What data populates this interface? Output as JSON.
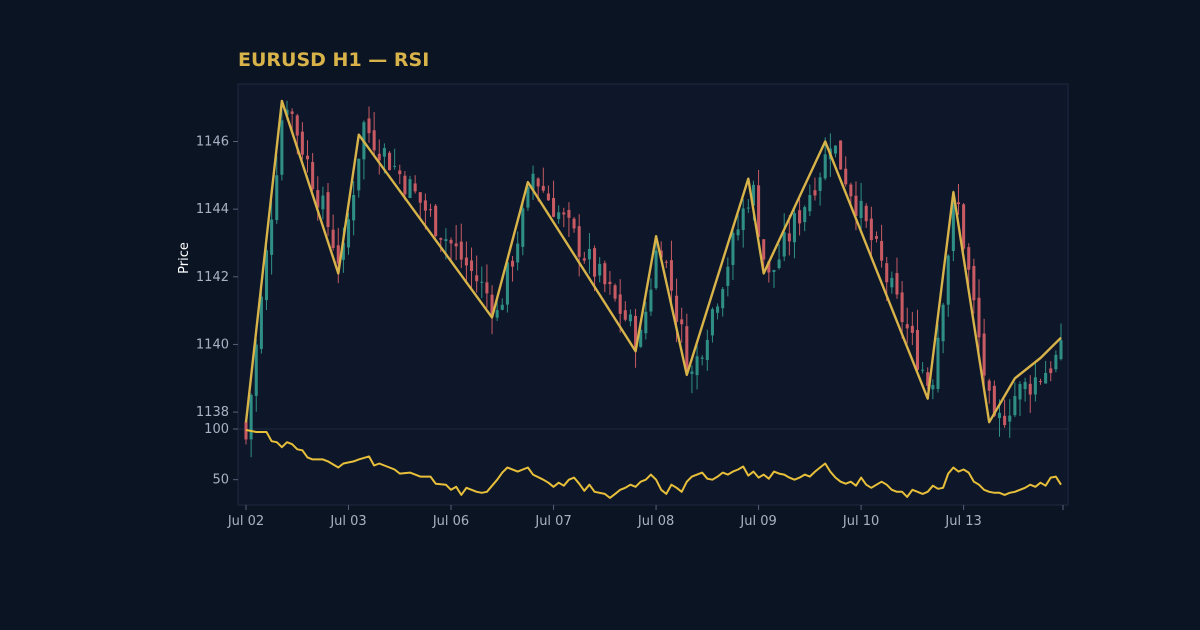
{
  "chart_data": {
    "type": "candlestick",
    "title": "EURUSD H1 — RSI",
    "ylabel": "Price",
    "x_ticks": [
      "Jul 02",
      "Jul 03",
      "Jul 06",
      "Jul 07",
      "Jul 08",
      "Jul 09",
      "Jul 10",
      "Jul 13"
    ],
    "price_ticks": [
      1138,
      1140,
      1142,
      1144,
      1146
    ],
    "price_ylim": [
      1137.5,
      1147.7
    ],
    "rsi_ticks": [
      100,
      50
    ],
    "rsi_ylim": [
      25,
      100
    ],
    "grid": false,
    "colors": {
      "background": "#0b1423",
      "panel": "#0d1729",
      "up": "#2f8f86",
      "down": "#c75a63",
      "zigzag": "#d8b34a",
      "rsi": "#e7bf3a",
      "title": "#d8b34a",
      "tick_text": "#a9b2c4"
    },
    "zigzag": [
      {
        "x": 0,
        "y": 1137.7
      },
      {
        "x": 7,
        "y": 1147.2
      },
      {
        "x": 18,
        "y": 1142.1
      },
      {
        "x": 22,
        "y": 1146.2
      },
      {
        "x": 48,
        "y": 1140.8
      },
      {
        "x": 55,
        "y": 1144.8
      },
      {
        "x": 76,
        "y": 1139.8
      },
      {
        "x": 80,
        "y": 1143.2
      },
      {
        "x": 86,
        "y": 1139.1
      },
      {
        "x": 98,
        "y": 1144.9
      },
      {
        "x": 101,
        "y": 1142.1
      },
      {
        "x": 113,
        "y": 1146.0
      },
      {
        "x": 133,
        "y": 1138.4
      },
      {
        "x": 138,
        "y": 1144.5
      },
      {
        "x": 145,
        "y": 1137.7
      },
      {
        "x": 150,
        "y": 1139.0
      },
      {
        "x": 155,
        "y": 1139.6
      },
      {
        "x": 159,
        "y": 1140.2
      }
    ],
    "rsi": [
      {
        "x": 0,
        "y": 99
      },
      {
        "x": 2,
        "y": 97
      },
      {
        "x": 4,
        "y": 97
      },
      {
        "x": 5,
        "y": 88
      },
      {
        "x": 6,
        "y": 87
      },
      {
        "x": 7,
        "y": 82
      },
      {
        "x": 8,
        "y": 87
      },
      {
        "x": 9,
        "y": 85
      },
      {
        "x": 10,
        "y": 80
      },
      {
        "x": 11,
        "y": 79
      },
      {
        "x": 12,
        "y": 72
      },
      {
        "x": 13,
        "y": 70
      },
      {
        "x": 15,
        "y": 70
      },
      {
        "x": 16,
        "y": 68
      },
      {
        "x": 18,
        "y": 62
      },
      {
        "x": 19,
        "y": 66
      },
      {
        "x": 21,
        "y": 68
      },
      {
        "x": 22,
        "y": 70
      },
      {
        "x": 24,
        "y": 73
      },
      {
        "x": 25,
        "y": 64
      },
      {
        "x": 26,
        "y": 66
      },
      {
        "x": 27,
        "y": 64
      },
      {
        "x": 29,
        "y": 60
      },
      {
        "x": 30,
        "y": 56
      },
      {
        "x": 32,
        "y": 57
      },
      {
        "x": 34,
        "y": 53
      },
      {
        "x": 36,
        "y": 53
      },
      {
        "x": 37,
        "y": 46
      },
      {
        "x": 39,
        "y": 45
      },
      {
        "x": 40,
        "y": 40
      },
      {
        "x": 41,
        "y": 43
      },
      {
        "x": 42,
        "y": 35
      },
      {
        "x": 43,
        "y": 42
      },
      {
        "x": 45,
        "y": 38
      },
      {
        "x": 46,
        "y": 37
      },
      {
        "x": 47,
        "y": 38
      },
      {
        "x": 49,
        "y": 50
      },
      {
        "x": 50,
        "y": 57
      },
      {
        "x": 51,
        "y": 62
      },
      {
        "x": 53,
        "y": 58
      },
      {
        "x": 54,
        "y": 60
      },
      {
        "x": 55,
        "y": 62
      },
      {
        "x": 56,
        "y": 55
      },
      {
        "x": 58,
        "y": 50
      },
      {
        "x": 59,
        "y": 47
      },
      {
        "x": 60,
        "y": 43
      },
      {
        "x": 61,
        "y": 47
      },
      {
        "x": 62,
        "y": 44
      },
      {
        "x": 63,
        "y": 50
      },
      {
        "x": 64,
        "y": 52
      },
      {
        "x": 65,
        "y": 46
      },
      {
        "x": 66,
        "y": 39
      },
      {
        "x": 67,
        "y": 45
      },
      {
        "x": 68,
        "y": 38
      },
      {
        "x": 70,
        "y": 36
      },
      {
        "x": 71,
        "y": 32
      },
      {
        "x": 72,
        "y": 36
      },
      {
        "x": 73,
        "y": 40
      },
      {
        "x": 74,
        "y": 42
      },
      {
        "x": 75,
        "y": 45
      },
      {
        "x": 76,
        "y": 43
      },
      {
        "x": 77,
        "y": 48
      },
      {
        "x": 78,
        "y": 50
      },
      {
        "x": 79,
        "y": 55
      },
      {
        "x": 80,
        "y": 50
      },
      {
        "x": 81,
        "y": 40
      },
      {
        "x": 82,
        "y": 36
      },
      {
        "x": 83,
        "y": 45
      },
      {
        "x": 84,
        "y": 42
      },
      {
        "x": 85,
        "y": 38
      },
      {
        "x": 86,
        "y": 48
      },
      {
        "x": 87,
        "y": 53
      },
      {
        "x": 88,
        "y": 55
      },
      {
        "x": 89,
        "y": 57
      },
      {
        "x": 90,
        "y": 51
      },
      {
        "x": 91,
        "y": 50
      },
      {
        "x": 92,
        "y": 53
      },
      {
        "x": 93,
        "y": 57
      },
      {
        "x": 94,
        "y": 55
      },
      {
        "x": 95,
        "y": 58
      },
      {
        "x": 96,
        "y": 60
      },
      {
        "x": 97,
        "y": 63
      },
      {
        "x": 98,
        "y": 54
      },
      {
        "x": 99,
        "y": 58
      },
      {
        "x": 100,
        "y": 52
      },
      {
        "x": 101,
        "y": 55
      },
      {
        "x": 102,
        "y": 51
      },
      {
        "x": 103,
        "y": 58
      },
      {
        "x": 104,
        "y": 56
      },
      {
        "x": 105,
        "y": 55
      },
      {
        "x": 106,
        "y": 52
      },
      {
        "x": 107,
        "y": 50
      },
      {
        "x": 108,
        "y": 52
      },
      {
        "x": 109,
        "y": 55
      },
      {
        "x": 110,
        "y": 53
      },
      {
        "x": 111,
        "y": 58
      },
      {
        "x": 112,
        "y": 62
      },
      {
        "x": 113,
        "y": 66
      },
      {
        "x": 114,
        "y": 58
      },
      {
        "x": 115,
        "y": 52
      },
      {
        "x": 116,
        "y": 48
      },
      {
        "x": 117,
        "y": 46
      },
      {
        "x": 118,
        "y": 48
      },
      {
        "x": 119,
        "y": 44
      },
      {
        "x": 120,
        "y": 52
      },
      {
        "x": 121,
        "y": 45
      },
      {
        "x": 122,
        "y": 42
      },
      {
        "x": 123,
        "y": 45
      },
      {
        "x": 124,
        "y": 48
      },
      {
        "x": 125,
        "y": 45
      },
      {
        "x": 126,
        "y": 40
      },
      {
        "x": 127,
        "y": 38
      },
      {
        "x": 128,
        "y": 38
      },
      {
        "x": 129,
        "y": 33
      },
      {
        "x": 130,
        "y": 40
      },
      {
        "x": 131,
        "y": 38
      },
      {
        "x": 132,
        "y": 36
      },
      {
        "x": 133,
        "y": 38
      },
      {
        "x": 134,
        "y": 44
      },
      {
        "x": 135,
        "y": 41
      },
      {
        "x": 136,
        "y": 42
      },
      {
        "x": 137,
        "y": 56
      },
      {
        "x": 138,
        "y": 62
      },
      {
        "x": 139,
        "y": 58
      },
      {
        "x": 140,
        "y": 60
      },
      {
        "x": 141,
        "y": 57
      },
      {
        "x": 142,
        "y": 48
      },
      {
        "x": 143,
        "y": 45
      },
      {
        "x": 144,
        "y": 40
      },
      {
        "x": 145,
        "y": 38
      },
      {
        "x": 146,
        "y": 37
      },
      {
        "x": 147,
        "y": 37
      },
      {
        "x": 148,
        "y": 35
      },
      {
        "x": 149,
        "y": 37
      },
      {
        "x": 150,
        "y": 38
      },
      {
        "x": 151,
        "y": 40
      },
      {
        "x": 152,
        "y": 42
      },
      {
        "x": 153,
        "y": 45
      },
      {
        "x": 154,
        "y": 43
      },
      {
        "x": 155,
        "y": 47
      },
      {
        "x": 156,
        "y": 44
      },
      {
        "x": 157,
        "y": 52
      },
      {
        "x": 158,
        "y": 53
      },
      {
        "x": 159,
        "y": 45
      }
    ],
    "series": [
      {
        "type": "candles",
        "start_tick": 0,
        "ticks_per_label": 20,
        "total": 160
      }
    ]
  }
}
